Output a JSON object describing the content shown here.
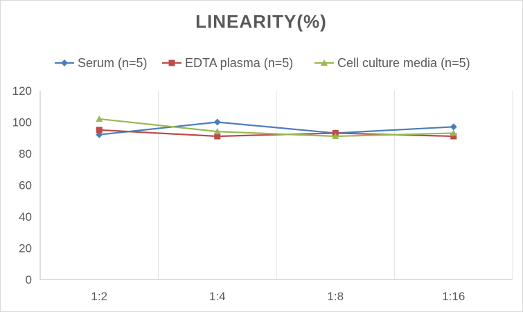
{
  "chart_data": {
    "type": "line",
    "title": "LINEARITY(%)",
    "xlabel": "",
    "ylabel": "",
    "categories": [
      "1:2",
      "1:4",
      "1:8",
      "1:16"
    ],
    "ylim": [
      0,
      120
    ],
    "yticks": [
      0,
      20,
      40,
      60,
      80,
      100,
      120
    ],
    "grid": "vertical",
    "legend_position": "top",
    "series": [
      {
        "name": "Serum (n=5)",
        "values": [
          92,
          100,
          93,
          97
        ],
        "color": "#4a7ebb",
        "marker": "diamond"
      },
      {
        "name": "EDTA plasma (n=5)",
        "values": [
          95,
          91,
          93,
          91
        ],
        "color": "#be4b48",
        "marker": "square"
      },
      {
        "name": "Cell culture media (n=5)",
        "values": [
          102,
          94,
          91,
          93
        ],
        "color": "#98b954",
        "marker": "triangle"
      }
    ]
  }
}
